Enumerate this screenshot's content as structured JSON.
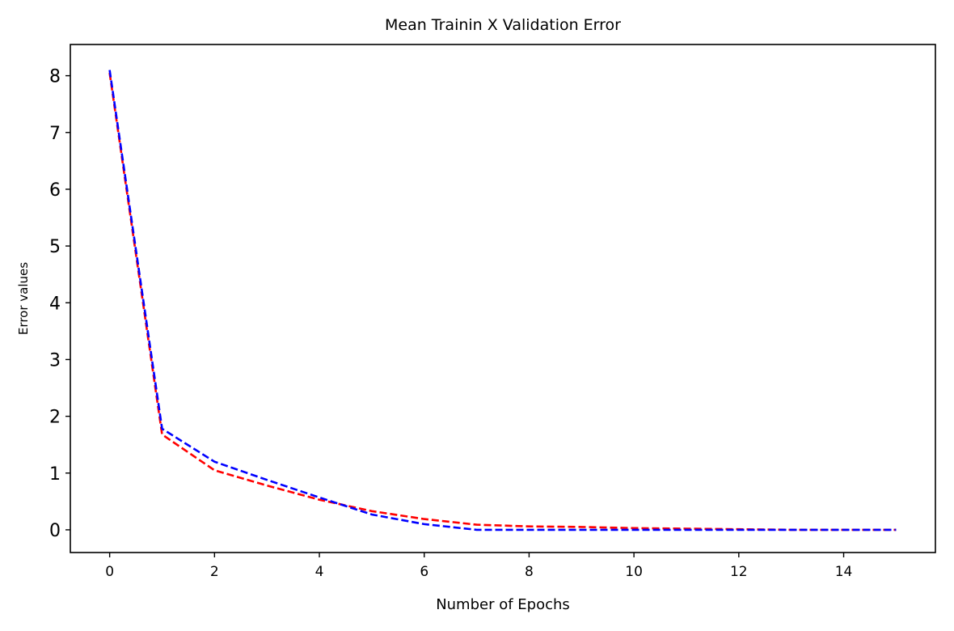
{
  "chart_data": {
    "type": "line",
    "title": "Mean Trainin X Validation Error",
    "xlabel": "Number of Epochs",
    "ylabel": "Error values",
    "xlim": [
      -0.75,
      15.75
    ],
    "ylim": [
      -0.4,
      8.55
    ],
    "xticks": [
      0,
      2,
      4,
      6,
      8,
      10,
      12,
      14
    ],
    "yticks": [
      0,
      1,
      2,
      3,
      4,
      5,
      6,
      7,
      8
    ],
    "grid": false,
    "legend": "none",
    "series": [
      {
        "color": "#ff0000",
        "line_style": "dashed",
        "x": [
          0,
          1,
          2,
          3,
          4,
          5,
          6,
          7,
          8,
          9,
          10,
          11,
          12,
          13,
          14,
          15
        ],
        "values": [
          8.05,
          1.68,
          1.05,
          0.78,
          0.53,
          0.33,
          0.19,
          0.09,
          0.06,
          0.05,
          0.03,
          0.02,
          0.01,
          0.0,
          0.0,
          0.0
        ]
      },
      {
        "color": "#0000ff",
        "line_style": "dashed",
        "x": [
          0,
          1,
          2,
          3,
          4,
          5,
          6,
          7,
          8,
          9,
          10,
          11,
          12,
          13,
          14,
          15
        ],
        "values": [
          8.1,
          1.78,
          1.2,
          0.88,
          0.57,
          0.27,
          0.1,
          0.0,
          0.0,
          0.0,
          0.0,
          0.0,
          0.0,
          0.0,
          0.0,
          0.0
        ]
      }
    ]
  }
}
